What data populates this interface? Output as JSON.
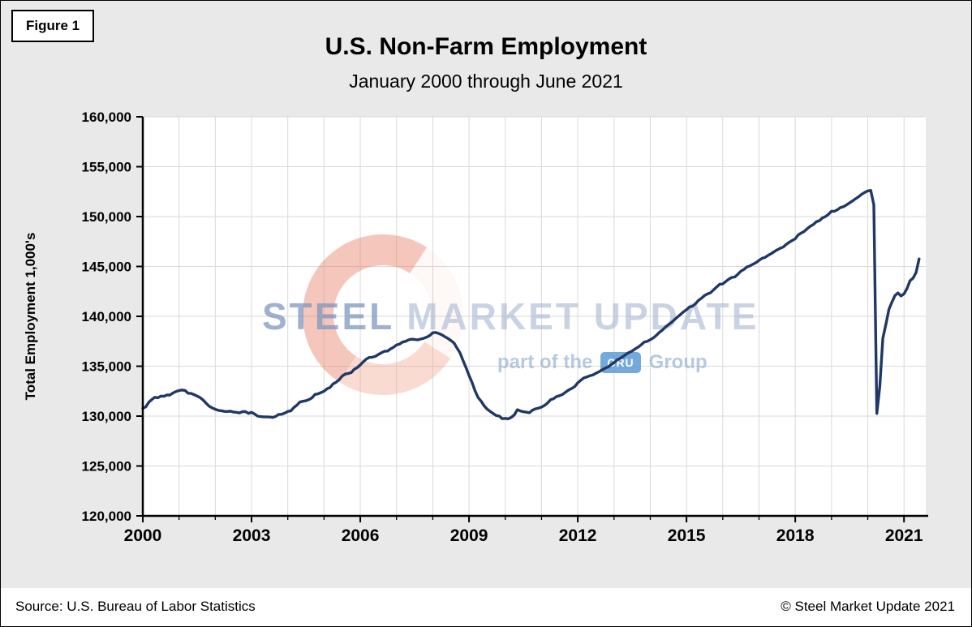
{
  "figure_label": "Figure 1",
  "title": "U.S. Non-Farm Employment",
  "subtitle": "January 2000 through June 2021",
  "watermark": {
    "brand_bold": "STEEL",
    "brand_light": "MARKET UPDATE",
    "tagline_prefix": "part of the",
    "badge": "CRU",
    "tagline_suffix": "Group",
    "accent_red": "#e87a60",
    "text_blue": "#a2b4d0"
  },
  "footer": {
    "source": "Source: U.S. Bureau  of Labor Statistics",
    "copyright": "© Steel Market Update 2021"
  },
  "chart_data": {
    "type": "line",
    "title": "U.S. Non-Farm Employment",
    "subtitle": "January 2000 through June 2021",
    "xlabel": "",
    "ylabel": "Total Employment 1,000's",
    "ylim": [
      120000,
      160000
    ],
    "ytick_step": 5000,
    "xlim": [
      2000,
      2021.6
    ],
    "xticks": [
      2000,
      2003,
      2006,
      2009,
      2012,
      2015,
      2018,
      2021
    ],
    "grid": true,
    "legend": "none",
    "line_color": "#1f3864",
    "background_plot": "#ffffff",
    "background_page": "#e9e9e9",
    "series": [
      {
        "name": "total_employment_thousands",
        "start": "2000-01",
        "frequency": "monthly",
        "end": "2021-06",
        "values": [
          130780,
          130930,
          131390,
          131670,
          131890,
          131840,
          132010,
          131980,
          132120,
          132110,
          132320,
          132470,
          132560,
          132620,
          132570,
          132290,
          132270,
          132150,
          132010,
          131850,
          131600,
          131280,
          130980,
          130820,
          130680,
          130580,
          130540,
          130470,
          130460,
          130500,
          130410,
          130380,
          130320,
          130450,
          130450,
          130280,
          130370,
          130210,
          130000,
          129950,
          129930,
          129930,
          129910,
          129870,
          129970,
          130170,
          130190,
          130310,
          130470,
          130520,
          130850,
          131100,
          131410,
          131490,
          131540,
          131660,
          131830,
          132170,
          132230,
          132360,
          132500,
          132740,
          132870,
          133230,
          133400,
          133640,
          134010,
          134210,
          134280,
          134360,
          134700,
          134860,
          135140,
          135450,
          135720,
          135890,
          135900,
          135990,
          136180,
          136350,
          136500,
          136520,
          136730,
          136900,
          137130,
          137220,
          137420,
          137500,
          137640,
          137710,
          137680,
          137640,
          137720,
          137800,
          137920,
          138080,
          138360,
          138380,
          138280,
          138150,
          137960,
          137790,
          137580,
          137330,
          136830,
          136350,
          135590,
          134850,
          134070,
          133370,
          132540,
          131850,
          131500,
          131030,
          130700,
          130470,
          130260,
          130060,
          130010,
          129740,
          129770,
          129720,
          129880,
          130120,
          130640,
          130510,
          130440,
          130390,
          130340,
          130590,
          130730,
          130800,
          130900,
          131070,
          131320,
          131640,
          131750,
          131970,
          132050,
          132180,
          132410,
          132620,
          132770,
          132970,
          133330,
          133590,
          133830,
          133930,
          134040,
          134130,
          134290,
          134440,
          134630,
          134790,
          134920,
          135150,
          135350,
          135630,
          135780,
          135980,
          136200,
          136380,
          136520,
          136730,
          136920,
          137150,
          137420,
          137490,
          137660,
          137840,
          138090,
          138390,
          138620,
          138920,
          139160,
          139380,
          139660,
          139930,
          140190,
          140450,
          140670,
          140940,
          141020,
          141280,
          141610,
          141830,
          142100,
          142250,
          142370,
          142670,
          142950,
          143220,
          143240,
          143490,
          143730,
          143900,
          143940,
          144220,
          144530,
          144700,
          144950,
          145060,
          145220,
          145380,
          145610,
          145810,
          145900,
          146110,
          146280,
          146480,
          146660,
          146820,
          146940,
          147210,
          147420,
          147600,
          147780,
          148170,
          148360,
          148520,
          148800,
          149030,
          149200,
          149480,
          149590,
          149870,
          150000,
          150230,
          150530,
          150540,
          150690,
          150910,
          150990,
          151180,
          151370,
          151580,
          151790,
          151980,
          152240,
          152420,
          152570,
          152630,
          151180,
          130270,
          133000,
          137800,
          139210,
          140700,
          141420,
          142080,
          142350,
          142040,
          142250,
          142790,
          143570,
          143840,
          144400,
          145760
        ]
      }
    ]
  }
}
